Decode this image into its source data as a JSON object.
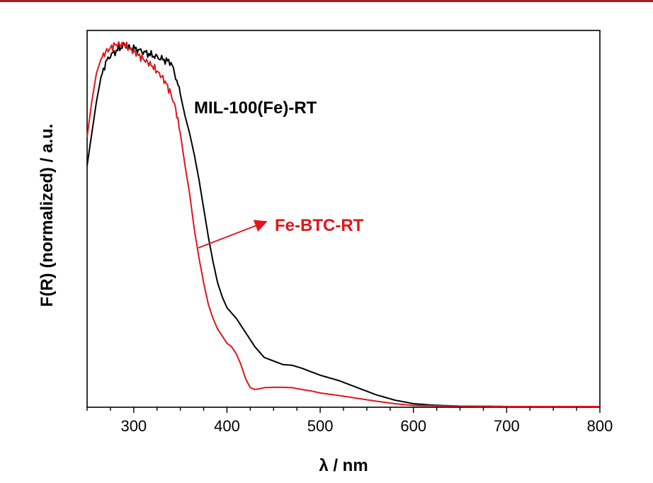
{
  "colors": {
    "top_rule": "#a31f2c"
  },
  "chart_data": {
    "type": "line",
    "xlabel": "λ / nm",
    "ylabel": "F(R) (normalized) / a.u.",
    "xlim": [
      250,
      800
    ],
    "ylim": [
      0,
      1.06
    ],
    "x_ticks": [
      300,
      400,
      500,
      600,
      700,
      800
    ],
    "x_minor_step": 25,
    "y_ticks_labeled": false,
    "grid": false,
    "series": [
      {
        "name": "MIL-100(Fe)-RT",
        "color": "#000000",
        "x": [
          250,
          255,
          260,
          265,
          270,
          275,
          280,
          285,
          290,
          295,
          300,
          310,
          320,
          330,
          340,
          345,
          350,
          355,
          360,
          365,
          370,
          375,
          380,
          385,
          390,
          395,
          400,
          410,
          420,
          430,
          440,
          450,
          460,
          470,
          480,
          490,
          500,
          520,
          540,
          560,
          580,
          600,
          620,
          650,
          700,
          750,
          800
        ],
        "y": [
          0.68,
          0.77,
          0.86,
          0.93,
          0.97,
          0.99,
          1.0,
          1.01,
          1.02,
          1.01,
          1.01,
          1.0,
          0.99,
          0.98,
          0.97,
          0.93,
          0.88,
          0.82,
          0.77,
          0.71,
          0.64,
          0.56,
          0.48,
          0.41,
          0.35,
          0.31,
          0.28,
          0.25,
          0.21,
          0.17,
          0.14,
          0.13,
          0.12,
          0.118,
          0.11,
          0.1,
          0.09,
          0.075,
          0.055,
          0.035,
          0.02,
          0.01,
          0.006,
          0.003,
          0.002,
          0.002,
          0.002
        ]
      },
      {
        "name": "Fe-BTC-RT",
        "color": "#e0161b",
        "x": [
          250,
          255,
          260,
          265,
          270,
          275,
          280,
          285,
          290,
          295,
          300,
          310,
          320,
          330,
          335,
          340,
          345,
          350,
          355,
          360,
          365,
          370,
          375,
          380,
          385,
          390,
          395,
          400,
          405,
          410,
          415,
          420,
          425,
          430,
          435,
          440,
          450,
          460,
          470,
          480,
          490,
          500,
          520,
          540,
          560,
          580,
          600,
          650,
          700,
          750,
          800
        ],
        "y": [
          0.76,
          0.86,
          0.94,
          0.98,
          1.0,
          1.01,
          1.02,
          1.02,
          1.02,
          1.01,
          1.0,
          0.98,
          0.96,
          0.93,
          0.91,
          0.88,
          0.84,
          0.77,
          0.68,
          0.6,
          0.5,
          0.42,
          0.35,
          0.29,
          0.25,
          0.22,
          0.2,
          0.18,
          0.17,
          0.15,
          0.12,
          0.08,
          0.055,
          0.05,
          0.052,
          0.055,
          0.056,
          0.056,
          0.055,
          0.05,
          0.046,
          0.04,
          0.033,
          0.025,
          0.017,
          0.01,
          0.005,
          0.003,
          0.002,
          0.002,
          0.002
        ]
      }
    ],
    "annotations": [
      {
        "text": "MIL-100(Fe)-RT",
        "color": "#000000",
        "arrow": false
      },
      {
        "text": "Fe-BTC-RT",
        "color": "#e0161b",
        "arrow": true
      }
    ]
  }
}
